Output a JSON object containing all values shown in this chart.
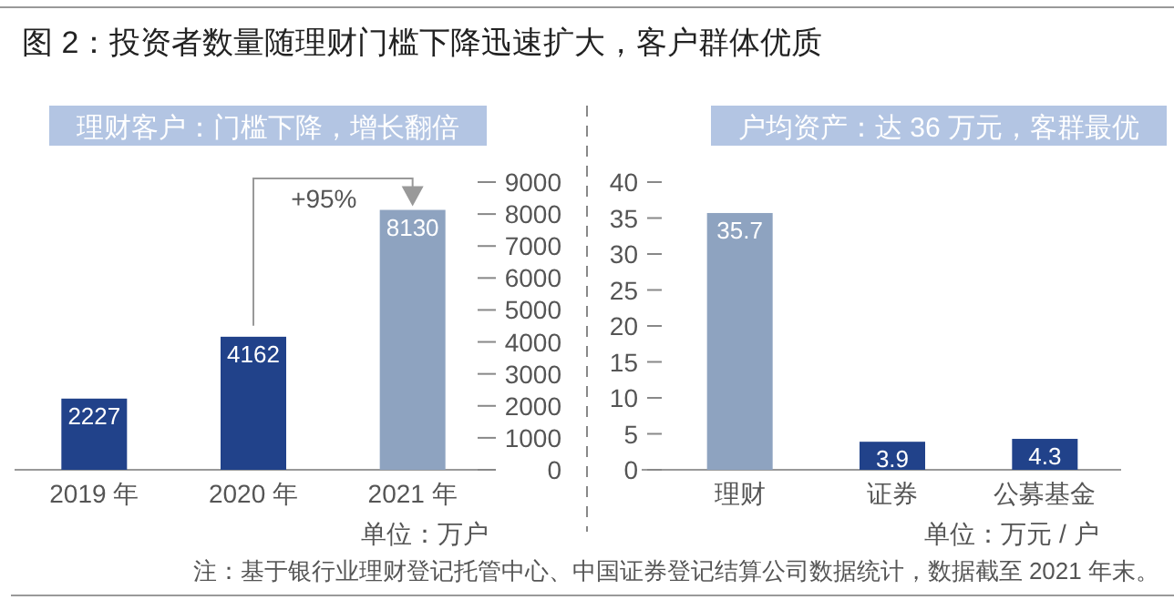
{
  "chart_data": [
    {
      "type": "bar",
      "title": "图 2：投资者数量随理财门槛下降迅速扩大，客户群体优质",
      "subtitle": "理财客户：门槛下降，增长翻倍",
      "categories": [
        "2019 年",
        "2020 年",
        "2021 年"
      ],
      "values": [
        2227,
        4162,
        8130
      ],
      "colors": [
        "#21428a",
        "#21428a",
        "#8ea3c0"
      ],
      "ylim": [
        0,
        9000
      ],
      "yticks": [
        0,
        1000,
        2000,
        3000,
        4000,
        5000,
        6000,
        7000,
        8000,
        9000
      ],
      "data_labels": true,
      "annotations": [
        "+95%",
        "单位：万户"
      ]
    },
    {
      "type": "bar",
      "title": "户均资产：达 36 万元，客群最优",
      "categories": [
        "理财",
        "证券",
        "公募基金"
      ],
      "values": [
        35.7,
        3.9,
        4.3
      ],
      "colors": [
        "#8ea3c0",
        "#21428a",
        "#21428a"
      ],
      "ylim": [
        0,
        40
      ],
      "yticks": [
        0,
        5,
        10,
        15,
        20,
        25,
        30,
        35,
        40
      ],
      "data_labels": true,
      "annotations": [
        "单位：万元 / 户",
        "注：基于银行业理财登记托管中心、中国证券登记结算公司数据统计，数据截至 2021 年末。"
      ]
    }
  ]
}
